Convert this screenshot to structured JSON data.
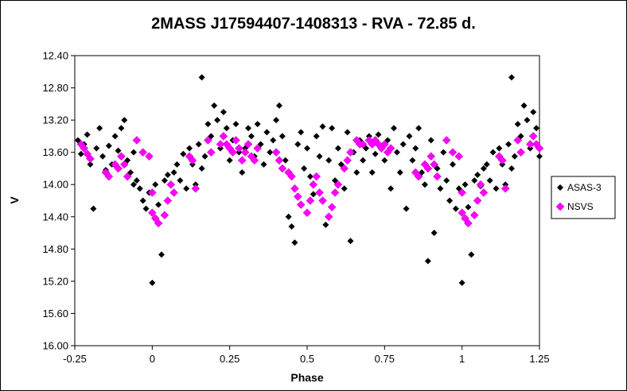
{
  "chart_data": {
    "type": "scatter",
    "title": "2MASS J17594407-1408313   - RVA - 72.85 d.",
    "xlabel": "Phase",
    "ylabel": "V",
    "xlim": [
      -0.25,
      1.25
    ],
    "ylim": [
      12.4,
      16.0
    ],
    "y_inverted": true,
    "x_ticks": [
      "-0.25",
      "0",
      "0.25",
      "0.5",
      "0.75",
      "1",
      "1.25"
    ],
    "y_ticks": [
      "12.40",
      "12.80",
      "13.20",
      "13.60",
      "14.00",
      "14.40",
      "14.80",
      "15.20",
      "15.60",
      "16.00"
    ],
    "grid": false,
    "legend_position": "right",
    "series": [
      {
        "name": "ASAS-3",
        "color": "#000000",
        "marker": "diamond",
        "points": [
          [
            -0.24,
            13.45
          ],
          [
            -0.23,
            13.62
          ],
          [
            -0.22,
            13.5
          ],
          [
            -0.21,
            13.38
          ],
          [
            -0.2,
            13.75
          ],
          [
            -0.19,
            14.3
          ],
          [
            -0.18,
            13.55
          ],
          [
            -0.17,
            13.3
          ],
          [
            -0.16,
            13.65
          ],
          [
            -0.15,
            13.82
          ],
          [
            -0.14,
            13.52
          ],
          [
            -0.13,
            13.75
          ],
          [
            -0.12,
            13.4
          ],
          [
            -0.11,
            13.58
          ],
          [
            -0.1,
            13.3
          ],
          [
            -0.09,
            13.2
          ],
          [
            -0.08,
            13.7
          ],
          [
            -0.07,
            13.85
          ],
          [
            -0.06,
            13.6
          ],
          [
            -0.06,
            14.0
          ],
          [
            -0.05,
            13.95
          ],
          [
            -0.04,
            14.05
          ],
          [
            -0.03,
            14.2
          ],
          [
            -0.02,
            14.3
          ],
          [
            -0.01,
            14.1
          ],
          [
            0.0,
            15.22
          ],
          [
            0.01,
            14.0
          ],
          [
            0.02,
            14.25
          ],
          [
            0.03,
            14.87
          ],
          [
            0.04,
            13.95
          ],
          [
            0.05,
            13.88
          ],
          [
            0.06,
            14.0
          ],
          [
            0.07,
            13.85
          ],
          [
            0.08,
            13.75
          ],
          [
            0.09,
            13.95
          ],
          [
            0.1,
            13.62
          ],
          [
            0.11,
            14.05
          ],
          [
            0.12,
            13.55
          ],
          [
            0.13,
            13.75
          ],
          [
            0.14,
            14.0
          ],
          [
            0.15,
            13.5
          ],
          [
            0.16,
            12.67
          ],
          [
            0.16,
            13.8
          ],
          [
            0.17,
            13.65
          ],
          [
            0.18,
            13.25
          ],
          [
            0.19,
            13.4
          ],
          [
            0.2,
            13.02
          ],
          [
            0.21,
            13.2
          ],
          [
            0.22,
            13.55
          ],
          [
            0.23,
            13.1
          ],
          [
            0.24,
            13.3
          ],
          [
            0.25,
            13.7
          ],
          [
            0.26,
            13.45
          ],
          [
            0.27,
            13.25
          ],
          [
            0.28,
            13.6
          ],
          [
            0.29,
            13.85
          ],
          [
            0.3,
            13.55
          ],
          [
            0.31,
            13.3
          ],
          [
            0.32,
            13.4
          ],
          [
            0.33,
            13.65
          ],
          [
            0.34,
            13.25
          ],
          [
            0.35,
            13.5
          ],
          [
            0.36,
            13.75
          ],
          [
            0.37,
            13.35
          ],
          [
            0.38,
            13.6
          ],
          [
            0.39,
            13.45
          ],
          [
            0.4,
            13.2
          ],
          [
            0.41,
            13.02
          ],
          [
            0.42,
            13.4
          ],
          [
            0.43,
            13.7
          ],
          [
            0.44,
            14.4
          ],
          [
            0.45,
            14.52
          ],
          [
            0.46,
            14.72
          ],
          [
            0.47,
            13.5
          ],
          [
            0.48,
            13.35
          ],
          [
            0.49,
            13.8
          ],
          [
            0.5,
            13.55
          ],
          [
            0.51,
            13.9
          ],
          [
            0.52,
            14.12
          ],
          [
            0.53,
            13.4
          ],
          [
            0.54,
            13.65
          ],
          [
            0.55,
            13.28
          ],
          [
            0.56,
            14.5
          ],
          [
            0.57,
            13.7
          ],
          [
            0.58,
            13.3
          ],
          [
            0.59,
            13.95
          ],
          [
            0.6,
            13.55
          ],
          [
            0.61,
            13.75
          ],
          [
            0.62,
            14.05
          ],
          [
            0.63,
            13.35
          ],
          [
            0.64,
            14.7
          ],
          [
            0.65,
            13.6
          ],
          [
            0.66,
            13.85
          ],
          [
            0.67,
            13.45
          ],
          [
            0.68,
            13.7
          ],
          [
            0.69,
            13.55
          ],
          [
            0.7,
            13.4
          ],
          [
            0.71,
            13.85
          ],
          [
            0.72,
            13.62
          ],
          [
            0.73,
            13.38
          ],
          [
            0.74,
            13.55
          ],
          [
            0.75,
            13.7
          ],
          [
            0.76,
            13.45
          ],
          [
            0.77,
            14.05
          ],
          [
            0.78,
            13.3
          ],
          [
            0.79,
            13.6
          ],
          [
            0.8,
            13.85
          ],
          [
            0.81,
            13.5
          ],
          [
            0.82,
            14.3
          ],
          [
            0.83,
            13.4
          ],
          [
            0.84,
            13.7
          ],
          [
            0.85,
            13.55
          ],
          [
            0.86,
            13.3
          ],
          [
            0.87,
            13.85
          ],
          [
            0.88,
            14.0
          ],
          [
            0.89,
            14.95
          ],
          [
            0.9,
            13.45
          ],
          [
            0.91,
            14.6
          ],
          [
            0.92,
            13.8
          ],
          [
            0.93,
            14.05
          ],
          [
            0.94,
            13.6
          ],
          [
            0.95,
            13.95
          ],
          [
            0.96,
            14.2
          ],
          [
            0.97,
            13.75
          ],
          [
            0.98,
            14.3
          ],
          [
            0.99,
            14.05
          ],
          [
            1.0,
            15.22
          ],
          [
            1.01,
            14.0
          ],
          [
            1.02,
            14.28
          ],
          [
            1.03,
            14.87
          ],
          [
            1.04,
            13.95
          ],
          [
            1.05,
            13.88
          ],
          [
            1.06,
            14.02
          ],
          [
            1.07,
            13.8
          ],
          [
            1.08,
            13.75
          ],
          [
            1.09,
            13.95
          ],
          [
            1.1,
            13.6
          ],
          [
            1.11,
            14.05
          ],
          [
            1.12,
            13.55
          ],
          [
            1.13,
            13.75
          ],
          [
            1.14,
            14.0
          ],
          [
            1.15,
            13.5
          ],
          [
            1.16,
            12.67
          ],
          [
            1.16,
            13.8
          ],
          [
            1.17,
            13.65
          ],
          [
            1.18,
            13.25
          ],
          [
            1.19,
            13.4
          ],
          [
            1.2,
            13.02
          ],
          [
            1.21,
            13.2
          ],
          [
            1.22,
            13.55
          ],
          [
            1.23,
            13.1
          ],
          [
            1.24,
            13.3
          ],
          [
            1.25,
            13.65
          ]
        ]
      },
      {
        "name": "NSVS",
        "color": "#ff00ff",
        "marker": "diamond",
        "points": [
          [
            -0.23,
            13.5
          ],
          [
            -0.22,
            13.55
          ],
          [
            -0.21,
            13.62
          ],
          [
            -0.2,
            13.68
          ],
          [
            -0.15,
            13.85
          ],
          [
            -0.14,
            13.9
          ],
          [
            -0.12,
            13.75
          ],
          [
            -0.11,
            13.8
          ],
          [
            -0.1,
            13.65
          ],
          [
            -0.09,
            13.75
          ],
          [
            -0.08,
            13.9
          ],
          [
            -0.05,
            13.45
          ],
          [
            -0.03,
            13.6
          ],
          [
            -0.01,
            13.65
          ],
          [
            0.0,
            14.1
          ],
          [
            0.0,
            14.35
          ],
          [
            0.01,
            14.42
          ],
          [
            0.02,
            14.48
          ],
          [
            0.04,
            14.38
          ],
          [
            0.05,
            14.2
          ],
          [
            0.06,
            14.0
          ],
          [
            0.07,
            14.1
          ],
          [
            0.12,
            13.65
          ],
          [
            0.13,
            13.7
          ],
          [
            0.14,
            14.05
          ],
          [
            0.18,
            13.45
          ],
          [
            0.19,
            13.6
          ],
          [
            0.22,
            13.5
          ],
          [
            0.23,
            13.4
          ],
          [
            0.24,
            13.5
          ],
          [
            0.25,
            13.55
          ],
          [
            0.26,
            13.6
          ],
          [
            0.27,
            13.45
          ],
          [
            0.28,
            13.55
          ],
          [
            0.29,
            13.7
          ],
          [
            0.3,
            13.6
          ],
          [
            0.31,
            13.5
          ],
          [
            0.32,
            13.65
          ],
          [
            0.33,
            13.7
          ],
          [
            0.34,
            13.55
          ],
          [
            0.4,
            13.6
          ],
          [
            0.41,
            13.7
          ],
          [
            0.42,
            13.8
          ],
          [
            0.44,
            13.85
          ],
          [
            0.45,
            13.9
          ],
          [
            0.46,
            14.05
          ],
          [
            0.47,
            14.15
          ],
          [
            0.48,
            14.25
          ],
          [
            0.5,
            14.35
          ],
          [
            0.51,
            14.2
          ],
          [
            0.52,
            14.0
          ],
          [
            0.53,
            13.9
          ],
          [
            0.54,
            14.1
          ],
          [
            0.55,
            14.2
          ],
          [
            0.57,
            14.4
          ],
          [
            0.58,
            14.28
          ],
          [
            0.59,
            14.1
          ],
          [
            0.6,
            14.0
          ],
          [
            0.62,
            13.8
          ],
          [
            0.63,
            13.7
          ],
          [
            0.64,
            13.6
          ],
          [
            0.66,
            13.45
          ],
          [
            0.67,
            13.5
          ],
          [
            0.68,
            13.5
          ],
          [
            0.7,
            13.45
          ],
          [
            0.71,
            13.5
          ],
          [
            0.72,
            13.45
          ],
          [
            0.73,
            13.5
          ],
          [
            0.74,
            13.55
          ],
          [
            0.75,
            13.5
          ],
          [
            0.76,
            13.6
          ],
          [
            0.77,
            13.55
          ],
          [
            0.85,
            13.85
          ],
          [
            0.86,
            13.9
          ],
          [
            0.88,
            13.75
          ],
          [
            0.89,
            13.8
          ],
          [
            0.9,
            13.65
          ],
          [
            0.91,
            13.75
          ],
          [
            0.92,
            13.9
          ],
          [
            0.95,
            13.45
          ],
          [
            0.97,
            13.6
          ],
          [
            0.99,
            13.65
          ],
          [
            1.0,
            14.1
          ],
          [
            1.0,
            14.35
          ],
          [
            1.01,
            14.42
          ],
          [
            1.02,
            14.48
          ],
          [
            1.04,
            14.38
          ],
          [
            1.05,
            14.2
          ],
          [
            1.06,
            14.0
          ],
          [
            1.07,
            14.1
          ],
          [
            1.12,
            13.65
          ],
          [
            1.13,
            13.7
          ],
          [
            1.14,
            14.05
          ],
          [
            1.18,
            13.45
          ],
          [
            1.19,
            13.6
          ],
          [
            1.22,
            13.5
          ],
          [
            1.23,
            13.4
          ],
          [
            1.24,
            13.5
          ],
          [
            1.25,
            13.55
          ]
        ]
      }
    ]
  }
}
